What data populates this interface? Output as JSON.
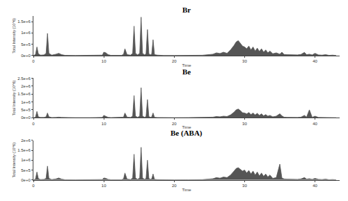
{
  "chart_data": [
    {
      "type": "line",
      "title": "Br",
      "xlabel": "Time",
      "ylabel": "Total Intensity (10^6)",
      "color": "#555555",
      "x": [
        0,
        0.3,
        0.5,
        0.7,
        1.0,
        1.5,
        1.8,
        2.0,
        2.2,
        2.6,
        3.2,
        3.6,
        4.0,
        4.5,
        6,
        8,
        9.8,
        10.0,
        10.3,
        10.6,
        11,
        12.5,
        12.8,
        13.0,
        13.3,
        13.8,
        14.1,
        14.3,
        14.5,
        14.8,
        15.1,
        15.3,
        15.5,
        15.8,
        16.0,
        16.2,
        16.4,
        16.6,
        16.8,
        17.0,
        17.2,
        17.6,
        18.5,
        20,
        22,
        24,
        25.5,
        26,
        26.5,
        27,
        27.5,
        28,
        28.5,
        28.8,
        29.1,
        29.4,
        29.7,
        30.0,
        30.3,
        30.6,
        30.9,
        31.2,
        31.5,
        31.8,
        32.1,
        32.4,
        32.7,
        33.0,
        33.3,
        33.6,
        34,
        34.5,
        35,
        35.3,
        35.6,
        36,
        36.5,
        37,
        37.5,
        38,
        38.5,
        38.8,
        39.2,
        39.6,
        40,
        40.5,
        41,
        41.5,
        42,
        42.5,
        43
      ],
      "values": [
        0,
        50000,
        380000,
        80000,
        20000,
        30000,
        100000,
        980000,
        100000,
        20000,
        60000,
        100000,
        40000,
        10000,
        5000,
        5000,
        20000,
        150000,
        120000,
        40000,
        10000,
        10000,
        50000,
        300000,
        40000,
        20000,
        100000,
        1300000,
        100000,
        30000,
        100000,
        1700000,
        100000,
        30000,
        80000,
        1150000,
        80000,
        30000,
        60000,
        700000,
        40000,
        20000,
        5000,
        5000,
        10000,
        15000,
        60000,
        120000,
        90000,
        150000,
        100000,
        250000,
        450000,
        600000,
        660000,
        550000,
        420000,
        380000,
        300000,
        420000,
        250000,
        380000,
        200000,
        330000,
        180000,
        300000,
        150000,
        250000,
        120000,
        200000,
        80000,
        120000,
        60000,
        150000,
        50000,
        40000,
        30000,
        40000,
        30000,
        50000,
        140000,
        40000,
        60000,
        30000,
        100000,
        30000,
        20000,
        40000,
        10000,
        20000,
        5000
      ],
      "xlim": [
        0,
        43.5
      ],
      "xticks": [
        0,
        10,
        20,
        30,
        40
      ],
      "ylim": [
        0,
        1750000
      ],
      "yticks": [
        {
          "value": 0,
          "label": "0e+0"
        },
        {
          "value": 500000,
          "label": "5e+5"
        },
        {
          "value": 1000000,
          "label": "1e+6"
        },
        {
          "value": 1500000,
          "label": "1.5e+6"
        }
      ]
    },
    {
      "type": "line",
      "title": "Be",
      "xlabel": "Time",
      "ylabel": "Total Intensity (10^6)",
      "color": "#555555",
      "x": [
        0,
        0.3,
        0.5,
        0.7,
        1.0,
        1.5,
        1.8,
        2.0,
        2.2,
        2.6,
        3.2,
        3.6,
        4.0,
        4.5,
        6,
        8,
        9.8,
        10.0,
        10.3,
        10.6,
        11,
        12.5,
        12.8,
        13.0,
        13.3,
        13.8,
        14.1,
        14.3,
        14.5,
        14.8,
        15.1,
        15.3,
        15.5,
        15.8,
        16.0,
        16.2,
        16.4,
        16.6,
        16.8,
        17.0,
        17.2,
        17.6,
        18.5,
        20,
        22,
        24,
        25.5,
        26,
        26.5,
        27,
        27.5,
        28,
        28.5,
        28.8,
        29.1,
        29.4,
        29.7,
        30.0,
        30.3,
        30.6,
        30.9,
        31.2,
        31.5,
        31.8,
        32.1,
        32.4,
        32.7,
        33.0,
        33.3,
        33.6,
        34,
        34.5,
        35,
        35.3,
        35.6,
        36,
        36.5,
        37,
        37.5,
        38,
        38.5,
        38.8,
        39.2,
        39.6,
        40,
        40.5,
        41,
        41.5,
        42,
        42.5,
        43
      ],
      "values": [
        0,
        40000,
        400000,
        60000,
        20000,
        20000,
        60000,
        300000,
        60000,
        15000,
        20000,
        40000,
        20000,
        10000,
        5000,
        5000,
        20000,
        150000,
        100000,
        30000,
        10000,
        10000,
        40000,
        300000,
        40000,
        20000,
        100000,
        1400000,
        100000,
        30000,
        100000,
        1900000,
        100000,
        30000,
        80000,
        1150000,
        80000,
        30000,
        50000,
        300000,
        30000,
        15000,
        5000,
        5000,
        10000,
        10000,
        40000,
        80000,
        60000,
        100000,
        80000,
        180000,
        350000,
        500000,
        550000,
        450000,
        320000,
        300000,
        240000,
        330000,
        200000,
        300000,
        180000,
        280000,
        150000,
        250000,
        120000,
        200000,
        100000,
        150000,
        60000,
        100000,
        250000,
        120000,
        40000,
        30000,
        20000,
        30000,
        20000,
        40000,
        150000,
        40000,
        500000,
        30000,
        100000,
        20000,
        15000,
        30000,
        10000,
        15000,
        5000
      ],
      "xlim": [
        0,
        43.5
      ],
      "xticks": [
        0,
        10,
        20,
        30,
        40
      ],
      "ylim": [
        0,
        2500000
      ],
      "yticks": [
        {
          "value": 0,
          "label": "0e+0"
        },
        {
          "value": 500000,
          "label": "5e+5"
        },
        {
          "value": 1000000,
          "label": "1e+6"
        },
        {
          "value": 1500000,
          "label": "1.5e+6"
        },
        {
          "value": 2000000,
          "label": "2e+6"
        },
        {
          "value": 2500000,
          "label": "2.5e+6"
        }
      ]
    },
    {
      "type": "line",
      "title": "Be (ABA)",
      "xlabel": "Time",
      "ylabel": "Total Intensity (10^6)",
      "color": "#555555",
      "x": [
        0,
        0.3,
        0.5,
        0.7,
        1.0,
        1.5,
        1.8,
        2.0,
        2.2,
        2.6,
        3.2,
        3.6,
        4.0,
        4.5,
        6,
        8,
        9.8,
        10.0,
        10.3,
        10.6,
        11,
        12.5,
        12.8,
        13.0,
        13.3,
        13.8,
        14.1,
        14.3,
        14.5,
        14.8,
        15.1,
        15.3,
        15.5,
        15.8,
        16.0,
        16.2,
        16.4,
        16.6,
        16.8,
        17.0,
        17.2,
        17.6,
        18.5,
        20,
        22,
        24,
        25.5,
        26,
        26.5,
        27,
        27.5,
        28,
        28.5,
        28.8,
        29.1,
        29.4,
        29.7,
        30.0,
        30.3,
        30.6,
        30.9,
        31.2,
        31.5,
        31.8,
        32.1,
        32.4,
        32.7,
        33.0,
        33.3,
        33.6,
        34,
        34.5,
        35,
        35.3,
        35.6,
        36,
        36.5,
        37,
        37.5,
        38,
        38.5,
        38.8,
        39.2,
        39.6,
        40,
        40.5,
        41,
        41.5,
        42,
        42.5,
        43
      ],
      "values": [
        0,
        50000,
        400000,
        70000,
        20000,
        30000,
        80000,
        700000,
        80000,
        20000,
        50000,
        100000,
        40000,
        10000,
        5000,
        5000,
        20000,
        100000,
        80000,
        30000,
        10000,
        10000,
        50000,
        350000,
        40000,
        20000,
        100000,
        1300000,
        100000,
        30000,
        100000,
        1650000,
        100000,
        30000,
        80000,
        1000000,
        80000,
        30000,
        50000,
        300000,
        30000,
        15000,
        5000,
        5000,
        10000,
        15000,
        60000,
        120000,
        90000,
        150000,
        120000,
        250000,
        450000,
        580000,
        620000,
        520000,
        450000,
        500000,
        350000,
        480000,
        300000,
        450000,
        250000,
        400000,
        200000,
        350000,
        180000,
        300000,
        150000,
        250000,
        80000,
        120000,
        800000,
        100000,
        50000,
        40000,
        30000,
        40000,
        30000,
        50000,
        120000,
        40000,
        60000,
        30000,
        80000,
        30000,
        20000,
        40000,
        10000,
        20000,
        5000
      ],
      "xlim": [
        0,
        43.5
      ],
      "xticks": [
        0,
        10,
        20,
        30,
        40
      ],
      "ylim": [
        0,
        2000000
      ],
      "yticks": [
        {
          "value": 0,
          "label": "0e+0"
        },
        {
          "value": 500000,
          "label": "5e+5"
        },
        {
          "value": 1000000,
          "label": "1e+6"
        },
        {
          "value": 1500000,
          "label": "1.5e+6"
        },
        {
          "value": 2000000,
          "label": "2e+6"
        }
      ]
    }
  ]
}
